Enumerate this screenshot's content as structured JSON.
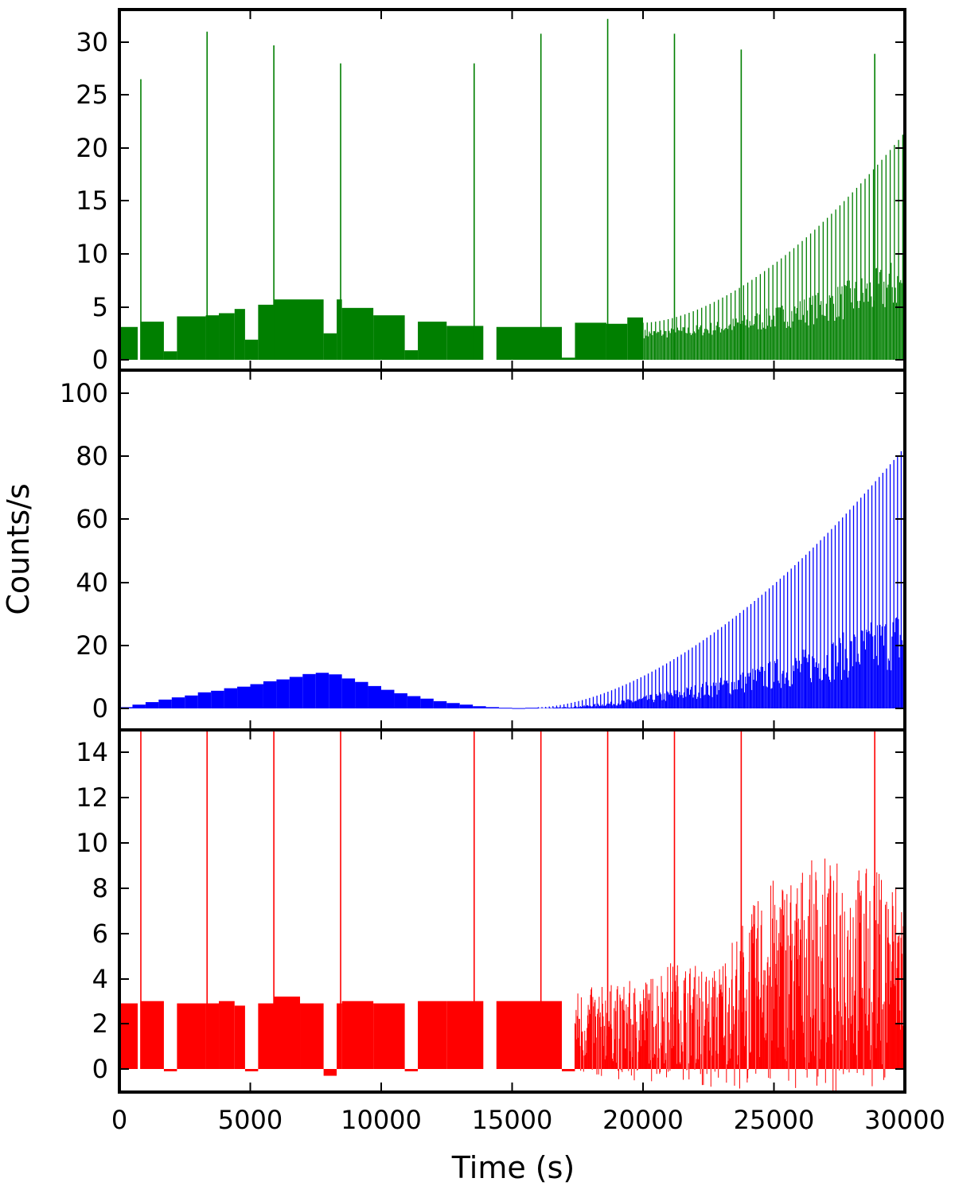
{
  "chart_data": {
    "type": "bar",
    "xlabel": "Time (s)",
    "ylabel": "Counts/s",
    "xlim": [
      0,
      30000
    ],
    "x_ticks": [
      "0",
      "5000",
      "10000",
      "15000",
      "20000",
      "25000",
      "30000"
    ],
    "grid": false,
    "panels": [
      {
        "color": "#007f00",
        "ylim": [
          -0.5,
          33
        ],
        "y_ticks": [
          "0",
          "5",
          "10",
          "15",
          "20",
          "25",
          "30"
        ],
        "baseline_segments": [
          {
            "x0": 0,
            "x1": 700,
            "y": 3.1
          },
          {
            "x0": 800,
            "x1": 1700,
            "y": 3.6
          },
          {
            "x0": 1700,
            "x1": 2200,
            "y": 0.8
          },
          {
            "x0": 2200,
            "x1": 3300,
            "y": 4.1
          },
          {
            "x0": 3300,
            "x1": 3800,
            "y": 4.2
          },
          {
            "x0": 3800,
            "x1": 4400,
            "y": 4.4
          },
          {
            "x0": 4400,
            "x1": 4800,
            "y": 4.8
          },
          {
            "x0": 4800,
            "x1": 5300,
            "y": 1.9
          },
          {
            "x0": 5300,
            "x1": 5900,
            "y": 5.2
          },
          {
            "x0": 5900,
            "x1": 7800,
            "y": 5.7
          },
          {
            "x0": 7800,
            "x1": 8300,
            "y": 2.5
          },
          {
            "x0": 8300,
            "x1": 8500,
            "y": 5.7
          },
          {
            "x0": 8500,
            "x1": 9700,
            "y": 4.9
          },
          {
            "x0": 9700,
            "x1": 10900,
            "y": 4.2
          },
          {
            "x0": 10900,
            "x1": 11400,
            "y": 0.9
          },
          {
            "x0": 11400,
            "x1": 12500,
            "y": 3.6
          },
          {
            "x0": 12500,
            "x1": 13900,
            "y": 3.2
          },
          {
            "x0": 14400,
            "x1": 16100,
            "y": 3.1
          },
          {
            "x0": 16100,
            "x1": 16900,
            "y": 3.1
          },
          {
            "x0": 16900,
            "x1": 17400,
            "y": 0.2
          },
          {
            "x0": 17400,
            "x1": 18600,
            "y": 3.5
          },
          {
            "x0": 18600,
            "x1": 19400,
            "y": 3.4
          },
          {
            "x0": 19400,
            "x1": 20000,
            "y": 4.0
          }
        ],
        "flares": [
          {
            "x": 820,
            "y": 26.5
          },
          {
            "x": 3350,
            "y": 31.0
          },
          {
            "x": 5900,
            "y": 29.7
          },
          {
            "x": 8450,
            "y": 28.0
          },
          {
            "x": 13550,
            "y": 28.0
          },
          {
            "x": 16100,
            "y": 30.8
          },
          {
            "x": 18650,
            "y": 32.2
          },
          {
            "x": 21200,
            "y": 30.8
          },
          {
            "x": 23750,
            "y": 29.3
          },
          {
            "x": 28850,
            "y": 28.9
          }
        ],
        "dense_region": {
          "x0": 20000,
          "x1": 30000,
          "start_peak": 3.5,
          "end_peak": 21.5,
          "period": 160
        }
      },
      {
        "color": "#0000ff",
        "ylim": [
          -0.5,
          105
        ],
        "y_ticks": [
          "0",
          "20",
          "40",
          "60",
          "80",
          "100"
        ],
        "bump": {
          "bins": [
            {
              "x0": 0,
              "x1": 500,
              "y": 0.4
            },
            {
              "x0": 500,
              "x1": 1000,
              "y": 1.2
            },
            {
              "x0": 1000,
              "x1": 1500,
              "y": 2.0
            },
            {
              "x0": 1500,
              "x1": 2000,
              "y": 2.8
            },
            {
              "x0": 2000,
              "x1": 2500,
              "y": 3.5
            },
            {
              "x0": 2500,
              "x1": 3000,
              "y": 4.1
            },
            {
              "x0": 3000,
              "x1": 3500,
              "y": 5.1
            },
            {
              "x0": 3500,
              "x1": 4000,
              "y": 5.6
            },
            {
              "x0": 4000,
              "x1": 4500,
              "y": 6.4
            },
            {
              "x0": 4500,
              "x1": 5000,
              "y": 6.9
            },
            {
              "x0": 5000,
              "x1": 5500,
              "y": 7.7
            },
            {
              "x0": 5500,
              "x1": 6000,
              "y": 8.6
            },
            {
              "x0": 6000,
              "x1": 6500,
              "y": 9.2
            },
            {
              "x0": 6500,
              "x1": 7000,
              "y": 10.0
            },
            {
              "x0": 7000,
              "x1": 7500,
              "y": 10.9
            },
            {
              "x0": 7500,
              "x1": 8000,
              "y": 11.3
            },
            {
              "x0": 8000,
              "x1": 8500,
              "y": 10.8
            },
            {
              "x0": 8500,
              "x1": 9000,
              "y": 9.5
            },
            {
              "x0": 9000,
              "x1": 9500,
              "y": 8.4
            },
            {
              "x0": 9500,
              "x1": 10000,
              "y": 7.1
            },
            {
              "x0": 10000,
              "x1": 10500,
              "y": 5.9
            },
            {
              "x0": 10500,
              "x1": 11000,
              "y": 4.8
            },
            {
              "x0": 11000,
              "x1": 11500,
              "y": 3.9
            },
            {
              "x0": 11500,
              "x1": 12000,
              "y": 3.1
            },
            {
              "x0": 12000,
              "x1": 12500,
              "y": 2.3
            },
            {
              "x0": 12500,
              "x1": 13000,
              "y": 1.7
            },
            {
              "x0": 13000,
              "x1": 13500,
              "y": 1.2
            },
            {
              "x0": 13500,
              "x1": 14000,
              "y": 0.7
            },
            {
              "x0": 14000,
              "x1": 14500,
              "y": 0.4
            },
            {
              "x0": 14500,
              "x1": 15000,
              "y": 0.2
            },
            {
              "x0": 15000,
              "x1": 15500,
              "y": 0.1
            },
            {
              "x0": 15500,
              "x1": 16000,
              "y": 0.2
            }
          ]
        },
        "dense_region": {
          "x0": 16000,
          "x1": 30000,
          "start_peak": 0.4,
          "end_peak": 83,
          "period": 140
        }
      },
      {
        "color": "#ff0000",
        "ylim": [
          -1,
          15
        ],
        "y_ticks": [
          "0",
          "2",
          "4",
          "6",
          "8",
          "10",
          "12",
          "14"
        ],
        "baseline_segments": [
          {
            "x0": 0,
            "x1": 700,
            "y": 2.9
          },
          {
            "x0": 800,
            "x1": 1700,
            "y": 3.0
          },
          {
            "x0": 1700,
            "x1": 2200,
            "y": -0.1
          },
          {
            "x0": 2200,
            "x1": 3300,
            "y": 2.9
          },
          {
            "x0": 3300,
            "x1": 3800,
            "y": 2.9
          },
          {
            "x0": 3800,
            "x1": 4400,
            "y": 3.0
          },
          {
            "x0": 4400,
            "x1": 4800,
            "y": 2.8
          },
          {
            "x0": 4800,
            "x1": 5300,
            "y": -0.1
          },
          {
            "x0": 5300,
            "x1": 5900,
            "y": 2.9
          },
          {
            "x0": 5900,
            "x1": 6900,
            "y": 3.2
          },
          {
            "x0": 6900,
            "x1": 7800,
            "y": 2.9
          },
          {
            "x0": 7800,
            "x1": 8300,
            "y": -0.3
          },
          {
            "x0": 8300,
            "x1": 8500,
            "y": 2.9
          },
          {
            "x0": 8500,
            "x1": 9700,
            "y": 3.0
          },
          {
            "x0": 9700,
            "x1": 10900,
            "y": 2.9
          },
          {
            "x0": 10900,
            "x1": 11400,
            "y": -0.1
          },
          {
            "x0": 11400,
            "x1": 12500,
            "y": 3.0
          },
          {
            "x0": 12500,
            "x1": 13900,
            "y": 3.0
          },
          {
            "x0": 14400,
            "x1": 16100,
            "y": 3.0
          },
          {
            "x0": 16100,
            "x1": 16900,
            "y": 3.0
          },
          {
            "x0": 16900,
            "x1": 17400,
            "y": -0.1
          }
        ],
        "flares": [
          {
            "x": 820,
            "y": 15
          },
          {
            "x": 3350,
            "y": 15
          },
          {
            "x": 5900,
            "y": 15
          },
          {
            "x": 8450,
            "y": 15
          },
          {
            "x": 13550,
            "y": 15
          },
          {
            "x": 16100,
            "y": 15
          },
          {
            "x": 18650,
            "y": 15
          },
          {
            "x": 21200,
            "y": 15
          },
          {
            "x": 23750,
            "y": 15
          },
          {
            "x": 28850,
            "y": 15
          }
        ],
        "noise_region": {
          "x0": 17400,
          "x1": 30000,
          "envelope": [
            {
              "x": 17400,
              "lo": -0.2,
              "hi": 3.5
            },
            {
              "x": 20000,
              "lo": -0.6,
              "hi": 4.0
            },
            {
              "x": 21000,
              "lo": -0.5,
              "hi": 4.8
            },
            {
              "x": 22800,
              "lo": -0.9,
              "hi": 4.5
            },
            {
              "x": 23700,
              "lo": -0.9,
              "hi": 6.5
            },
            {
              "x": 25000,
              "lo": -0.9,
              "hi": 8.5
            },
            {
              "x": 27000,
              "lo": -1.0,
              "hi": 9.5
            },
            {
              "x": 30000,
              "lo": -0.9,
              "hi": 8.5
            }
          ]
        }
      }
    ]
  }
}
